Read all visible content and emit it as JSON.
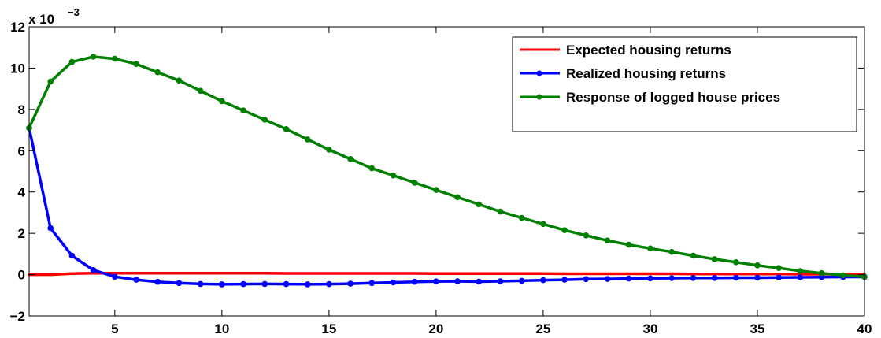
{
  "chart_data": {
    "type": "line",
    "title": "",
    "xlabel": "",
    "ylabel": "",
    "y_exponent_label": "x 10",
    "y_exponent_power": "−3",
    "xlim": [
      1,
      40
    ],
    "ylim": [
      -2,
      12
    ],
    "x_ticks": [
      5,
      10,
      15,
      20,
      25,
      30,
      35,
      40
    ],
    "y_ticks": [
      -2,
      0,
      2,
      4,
      6,
      8,
      10,
      12
    ],
    "grid": false,
    "legend_position": "top-right",
    "x": [
      1,
      2,
      3,
      4,
      5,
      6,
      7,
      8,
      9,
      10,
      11,
      12,
      13,
      14,
      15,
      16,
      17,
      18,
      19,
      20,
      21,
      22,
      23,
      24,
      25,
      26,
      27,
      28,
      29,
      30,
      31,
      32,
      33,
      34,
      35,
      36,
      37,
      38,
      39,
      40
    ],
    "series": [
      {
        "name": "Expected housing returns",
        "color": "#ff0000",
        "markers": false,
        "values": [
          0,
          0,
          0.05,
          0.07,
          0.07,
          0.07,
          0.07,
          0.07,
          0.07,
          0.07,
          0.07,
          0.07,
          0.06,
          0.06,
          0.06,
          0.06,
          0.06,
          0.06,
          0.06,
          0.05,
          0.05,
          0.05,
          0.05,
          0.05,
          0.05,
          0.04,
          0.04,
          0.04,
          0.04,
          0.04,
          0.04,
          0.03,
          0.03,
          0.03,
          0.03,
          0.03,
          0.02,
          0.02,
          0.02,
          0.02
        ]
      },
      {
        "name": "Realized housing returns",
        "color": "#0000ff",
        "markers": true,
        "values": [
          7.1,
          2.25,
          0.92,
          0.22,
          -0.1,
          -0.25,
          -0.35,
          -0.41,
          -0.45,
          -0.47,
          -0.46,
          -0.45,
          -0.46,
          -0.47,
          -0.46,
          -0.44,
          -0.41,
          -0.38,
          -0.35,
          -0.33,
          -0.32,
          -0.34,
          -0.32,
          -0.3,
          -0.27,
          -0.25,
          -0.22,
          -0.21,
          -0.19,
          -0.18,
          -0.17,
          -0.16,
          -0.16,
          -0.15,
          -0.15,
          -0.14,
          -0.13,
          -0.12,
          -0.11,
          -0.11
        ]
      },
      {
        "name": "Response of logged house prices",
        "color": "#008000",
        "markers": true,
        "values": [
          7.1,
          9.35,
          10.3,
          10.55,
          10.45,
          10.2,
          9.8,
          9.4,
          8.9,
          8.4,
          7.95,
          7.5,
          7.05,
          6.55,
          6.05,
          5.6,
          5.15,
          4.8,
          4.45,
          4.1,
          3.75,
          3.4,
          3.05,
          2.75,
          2.45,
          2.15,
          1.9,
          1.65,
          1.45,
          1.27,
          1.1,
          0.92,
          0.75,
          0.6,
          0.45,
          0.32,
          0.18,
          0.07,
          -0.03,
          -0.1
        ]
      }
    ]
  }
}
